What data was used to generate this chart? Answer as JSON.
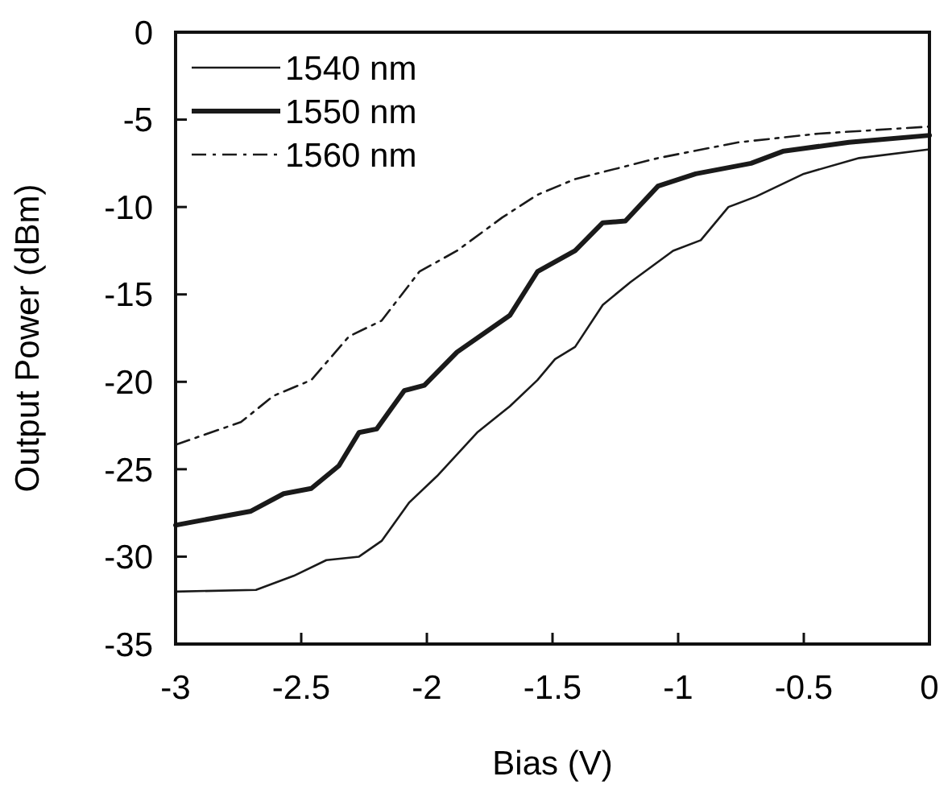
{
  "chart_data": {
    "type": "line",
    "xlabel": "Bias (V)",
    "ylabel": "Output Power (dBm)",
    "xlim": [
      -3,
      0
    ],
    "ylim": [
      -35,
      0
    ],
    "xticks": [
      -3,
      -2.5,
      -2,
      -1.5,
      -1,
      -0.5,
      0
    ],
    "yticks": [
      -35,
      -30,
      -25,
      -20,
      -15,
      -10,
      -5,
      0
    ],
    "grid": false,
    "legend": "top left",
    "marker": "none",
    "series": [
      {
        "name": "1540 nm",
        "color": "#1a1a1a",
        "line_style": "solid",
        "x": [
          -3,
          -2.68,
          -2.53,
          -2.4,
          -2.27,
          -2.18,
          -2.07,
          -1.96,
          -1.8,
          -1.67,
          -1.56,
          -1.49,
          -1.41,
          -1.3,
          -1.19,
          -1.02,
          -0.91,
          -0.8,
          -0.69,
          -0.5,
          -0.28,
          0
        ],
        "values": [
          -32,
          -31.9,
          -31.1,
          -30.2,
          -30,
          -29.1,
          -26.9,
          -25.4,
          -22.9,
          -21.4,
          -19.9,
          -18.7,
          -18,
          -15.6,
          -14.3,
          -12.5,
          -11.9,
          -10,
          -9.4,
          -8.1,
          -7.2,
          -6.7
        ]
      },
      {
        "name": "1550 nm",
        "color": "#1a1a1a",
        "line_style": "solid",
        "x": [
          -3,
          -2.7,
          -2.57,
          -2.46,
          -2.35,
          -2.27,
          -2.2,
          -2.09,
          -2.01,
          -1.88,
          -1.67,
          -1.56,
          -1.41,
          -1.3,
          -1.21,
          -1.08,
          -0.93,
          -0.71,
          -0.58,
          -0.32,
          0
        ],
        "values": [
          -28.2,
          -27.4,
          -26.4,
          -26.1,
          -24.8,
          -22.9,
          -22.7,
          -20.5,
          -20.2,
          -18.3,
          -16.2,
          -13.7,
          -12.5,
          -10.9,
          -10.8,
          -8.8,
          -8.1,
          -7.5,
          -6.8,
          -6.3,
          -5.9
        ]
      },
      {
        "name": "1560 nm",
        "color": "#1a1a1a",
        "line_style": "dashed",
        "x": [
          -3,
          -2.74,
          -2.61,
          -2.46,
          -2.31,
          -2.18,
          -2.03,
          -1.88,
          -1.7,
          -1.56,
          -1.41,
          -1.08,
          -0.76,
          -0.44,
          0
        ],
        "values": [
          -23.6,
          -22.3,
          -20.8,
          -19.9,
          -17.4,
          -16.5,
          -13.7,
          -12.5,
          -10.6,
          -9.3,
          -8.4,
          -7.2,
          -6.3,
          -5.8,
          -5.4
        ]
      }
    ]
  }
}
